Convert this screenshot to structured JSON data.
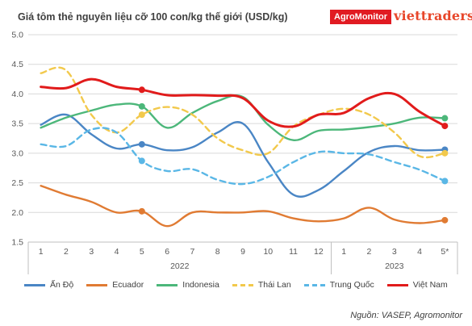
{
  "header": {
    "title": "Giá tôm thẻ nguyên liệu cỡ 100 con/kg thế giới (USD/kg)",
    "brand_agromonitor": "AgroMonitor",
    "brand_viettraders": "viettraders"
  },
  "source": "Nguồn: VASEP, Agromonitor",
  "chart_data": {
    "type": "line",
    "title": "Giá tôm thẻ nguyên liệu cỡ 100 con/kg thế giới (USD/kg)",
    "x": [
      "1",
      "2",
      "3",
      "4",
      "5",
      "6",
      "7",
      "8",
      "9",
      "10",
      "11",
      "12",
      "1",
      "2",
      "3",
      "4",
      "5*"
    ],
    "year_groups": [
      {
        "label": "2022",
        "start": 0,
        "end": 11
      },
      {
        "label": "2023",
        "start": 12,
        "end": 16
      }
    ],
    "ylim": [
      1.5,
      5.0
    ],
    "yticks": [
      "1.5",
      "2.0",
      "2.5",
      "3.0",
      "3.5",
      "4.0",
      "4.5",
      "5.0"
    ],
    "grid": true,
    "legend_position": "bottom",
    "series": [
      {
        "name": "Ấn Độ",
        "color": "#4a86c5",
        "dashed": false,
        "values": [
          3.48,
          3.65,
          3.32,
          3.08,
          3.15,
          3.05,
          3.1,
          3.35,
          3.5,
          2.85,
          2.3,
          2.38,
          2.7,
          3.02,
          3.12,
          3.05,
          3.06
        ],
        "markers": [
          4,
          16
        ]
      },
      {
        "name": "Ecuador",
        "color": "#e07b33",
        "dashed": false,
        "values": [
          2.45,
          2.3,
          2.18,
          2.0,
          2.02,
          1.77,
          2.0,
          2.0,
          2.0,
          2.02,
          1.9,
          1.85,
          1.9,
          2.08,
          1.88,
          1.82,
          1.87
        ],
        "markers": [
          4,
          16
        ]
      },
      {
        "name": "Indonesia",
        "color": "#4cb77a",
        "dashed": false,
        "values": [
          3.43,
          3.6,
          3.72,
          3.82,
          3.79,
          3.43,
          3.68,
          3.88,
          3.95,
          3.48,
          3.22,
          3.38,
          3.4,
          3.44,
          3.5,
          3.6,
          3.59
        ],
        "markers": [
          4,
          16
        ]
      },
      {
        "name": "Thái Lan",
        "color": "#f2c94c",
        "dashed": true,
        "values": [
          4.35,
          4.4,
          3.65,
          3.35,
          3.65,
          3.78,
          3.65,
          3.25,
          3.05,
          3.0,
          3.45,
          3.65,
          3.75,
          3.65,
          3.35,
          2.95,
          3.0
        ],
        "markers": [
          4,
          16
        ]
      },
      {
        "name": "Trung Quốc",
        "color": "#5ab7e6",
        "dashed": true,
        "values": [
          3.15,
          3.12,
          3.4,
          3.35,
          2.87,
          2.7,
          2.73,
          2.55,
          2.48,
          2.6,
          2.85,
          3.02,
          3.0,
          2.98,
          2.85,
          2.72,
          2.53
        ],
        "markers": [
          4,
          16
        ]
      },
      {
        "name": "Việt Nam",
        "color": "#e11b1b",
        "dashed": false,
        "values": [
          4.12,
          4.1,
          4.25,
          4.12,
          4.07,
          3.98,
          3.98,
          3.97,
          3.93,
          3.55,
          3.45,
          3.65,
          3.68,
          3.93,
          4.0,
          3.7,
          3.46
        ],
        "markers": [
          4,
          16
        ]
      }
    ]
  }
}
